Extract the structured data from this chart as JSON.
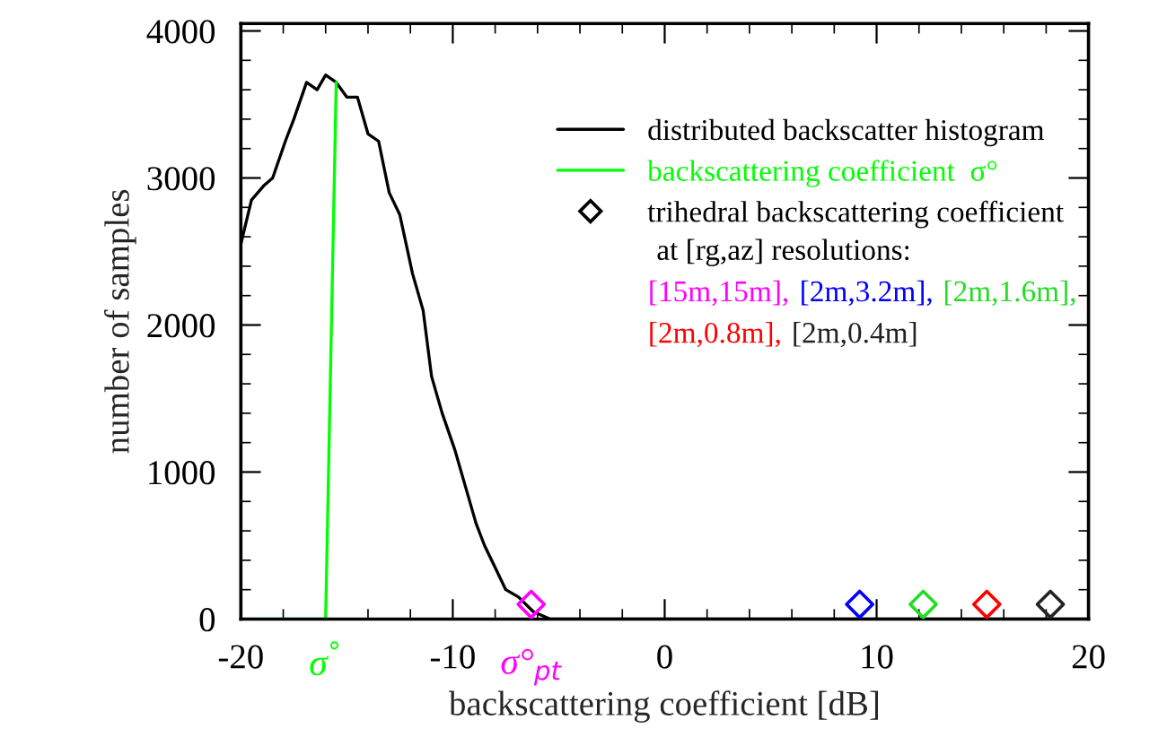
{
  "chart_data": {
    "type": "line",
    "xlabel": "backscattering coefficient [dB]",
    "ylabel": "number of samples",
    "xlim": [
      -20,
      20
    ],
    "xticks": [
      -20,
      -10,
      0,
      10,
      20
    ],
    "ylim": [
      0,
      4050
    ],
    "yticks": [
      0,
      1000,
      2000,
      3000,
      4000
    ],
    "grid": false,
    "legend": "top right",
    "series": [
      {
        "name": "distributed backscatter histogram",
        "color": "#000000",
        "x": [
          -20,
          -19.5,
          -18.9,
          -18.5,
          -17.9,
          -17.5,
          -16.9,
          -16.4,
          -16.0,
          -15.5,
          -15.0,
          -14.5,
          -14.0,
          -13.5,
          -13.0,
          -12.5,
          -11.9,
          -11.4,
          -11.0,
          -10.5,
          -9.9,
          -9.4,
          -8.9,
          -8.5,
          -8.0,
          -7.5,
          -6.9,
          -6.2,
          -5.4,
          -4.0,
          0,
          10,
          20
        ],
        "values": [
          2550,
          2850,
          2950,
          3000,
          3250,
          3400,
          3650,
          3600,
          3700,
          3650,
          3550,
          3550,
          3300,
          3250,
          2900,
          2750,
          2350,
          2100,
          1650,
          1400,
          1150,
          900,
          650,
          500,
          350,
          200,
          150,
          50,
          0,
          0,
          0,
          0,
          0
        ]
      },
      {
        "name": "backscattering coefficient  σ°",
        "color": "#00ff00",
        "x": [
          -20,
          -16.0,
          -15.5
        ],
        "values": [
          0,
          0,
          3650
        ]
      },
      {
        "name": "[15m,15m],",
        "color": "#ff00ff",
        "type": "scatter",
        "marker": "diamond",
        "x": [
          -6.3
        ],
        "values": [
          100
        ]
      },
      {
        "name": "[2m,3.2m],",
        "color": "#0000ff",
        "type": "scatter",
        "marker": "diamond",
        "x": [
          9.2
        ],
        "values": [
          100
        ]
      },
      {
        "name": "[2m,1.6m],",
        "color": "#22dd22",
        "type": "scatter",
        "marker": "diamond",
        "x": [
          12.2
        ],
        "values": [
          100
        ]
      },
      {
        "name": "[2m,0.8m],",
        "color": "#ff0000",
        "type": "scatter",
        "marker": "diamond",
        "x": [
          15.2
        ],
        "values": [
          100
        ]
      },
      {
        "name": "[2m,0.4m]",
        "color": "#222222",
        "type": "scatter",
        "marker": "diamond",
        "x": [
          18.2
        ],
        "values": [
          100
        ]
      }
    ],
    "annotations": [
      "trihedral backscattering coefficient",
      "at [rg,az] resolutions:",
      {
        "text": "σ$^{°}$",
        "x": -16.0,
        "y": 0
      },
      {
        "text": "σ°$_{pt}$",
        "x": -6.3,
        "y": 0
      }
    ]
  }
}
